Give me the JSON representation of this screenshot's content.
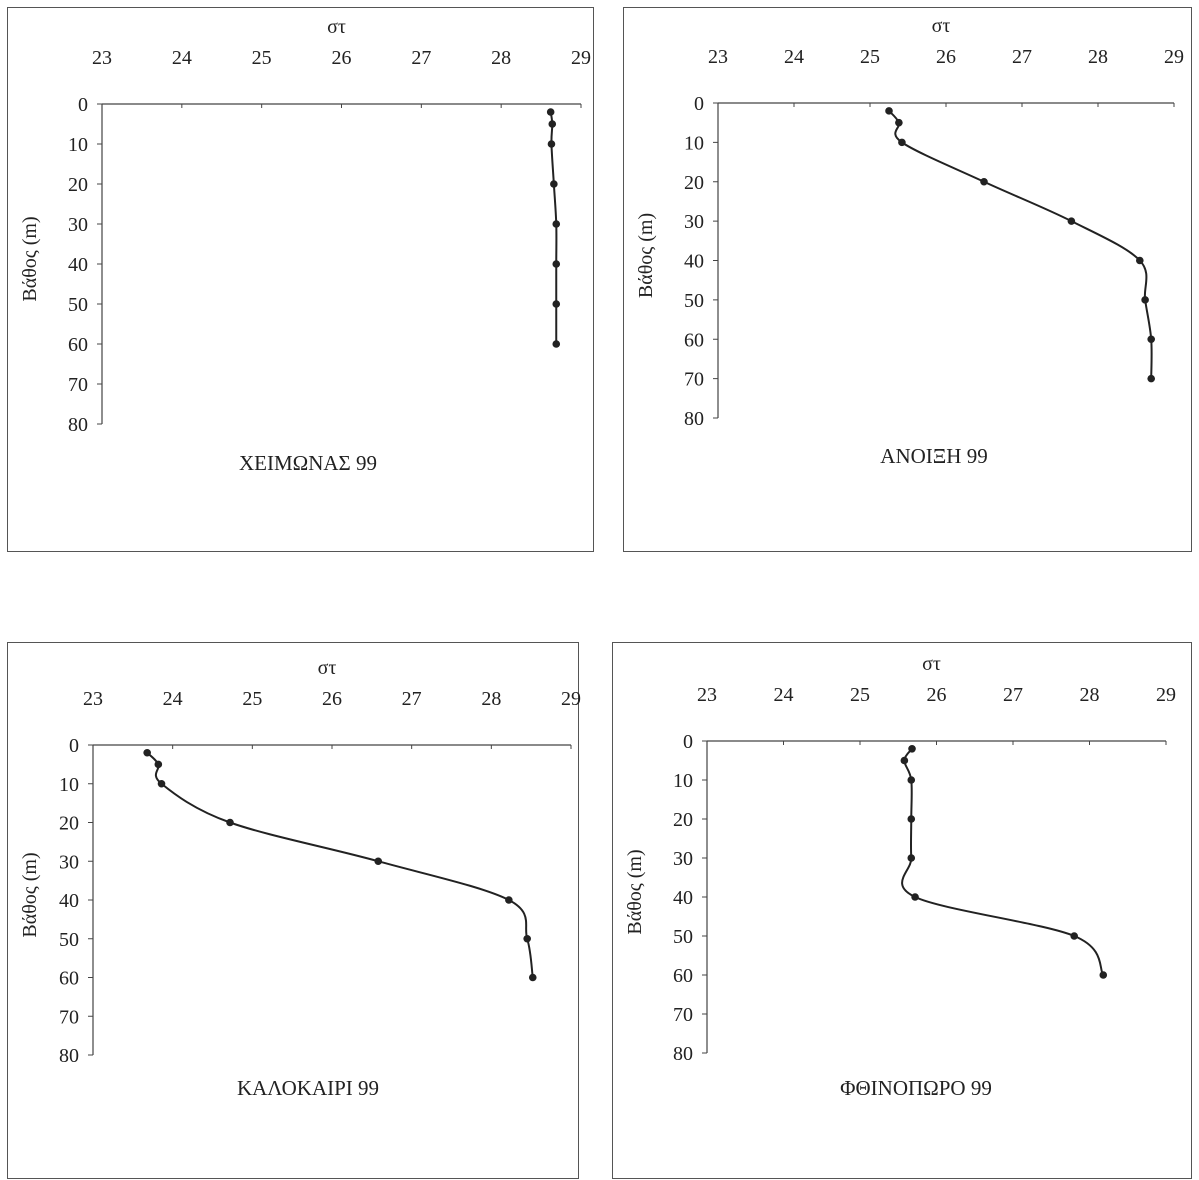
{
  "chart_data": [
    {
      "type": "line",
      "title": "ΧΕΙΜΩΝΑΣ 99",
      "xlabel": "στ",
      "ylabel": "Βάθος (m)",
      "xlim": [
        23,
        29
      ],
      "ylim": [
        0,
        80
      ],
      "x_ticks": [
        "23",
        "24",
        "25",
        "26",
        "27",
        "28",
        "29"
      ],
      "y_ticks": [
        "0",
        "10",
        "20",
        "30",
        "40",
        "50",
        "60",
        "70",
        "80"
      ],
      "y_inverted": true,
      "x_axis_position": "top",
      "series": [
        {
          "points": [
            [
              28.62,
              2
            ],
            [
              28.64,
              5
            ],
            [
              28.63,
              10
            ],
            [
              28.66,
              20
            ],
            [
              28.69,
              30
            ],
            [
              28.69,
              40
            ],
            [
              28.69,
              50
            ],
            [
              28.69,
              60
            ]
          ]
        }
      ]
    },
    {
      "type": "line",
      "title": "ΑΝΟΙΞΗ 99",
      "xlabel": "στ",
      "ylabel": "Βάθος (m)",
      "xlim": [
        23,
        29
      ],
      "ylim": [
        0,
        80
      ],
      "x_ticks": [
        "23",
        "24",
        "25",
        "26",
        "27",
        "28",
        "29"
      ],
      "y_ticks": [
        "0",
        "10",
        "20",
        "30",
        "40",
        "50",
        "60",
        "70",
        "80"
      ],
      "y_inverted": true,
      "x_axis_position": "top",
      "series": [
        {
          "points": [
            [
              25.25,
              2
            ],
            [
              25.38,
              5
            ],
            [
              25.42,
              10
            ],
            [
              26.5,
              20
            ],
            [
              27.65,
              30
            ],
            [
              28.55,
              40
            ],
            [
              28.62,
              50
            ],
            [
              28.7,
              60
            ],
            [
              28.7,
              70
            ]
          ]
        }
      ]
    },
    {
      "type": "line",
      "title": "ΚΑΛΟΚΑΙΡΙ 99",
      "xlabel": "στ",
      "ylabel": "Βάθος (m)",
      "xlim": [
        23,
        29
      ],
      "ylim": [
        0,
        80
      ],
      "x_ticks": [
        "23",
        "24",
        "25",
        "26",
        "27",
        "28",
        "29"
      ],
      "y_ticks": [
        "0",
        "10",
        "20",
        "30",
        "40",
        "50",
        "60",
        "70",
        "80"
      ],
      "y_inverted": true,
      "x_axis_position": "top",
      "series": [
        {
          "points": [
            [
              23.68,
              2
            ],
            [
              23.82,
              5
            ],
            [
              23.86,
              10
            ],
            [
              24.72,
              20
            ],
            [
              26.58,
              30
            ],
            [
              28.22,
              40
            ],
            [
              28.45,
              50
            ],
            [
              28.52,
              60
            ]
          ]
        }
      ]
    },
    {
      "type": "line",
      "title": "ΦΘΙΝΟΠΩΡΟ 99",
      "xlabel": "στ",
      "ylabel": "Βάθος (m)",
      "xlim": [
        23,
        29
      ],
      "ylim": [
        0,
        80
      ],
      "x_ticks": [
        "23",
        "24",
        "25",
        "26",
        "27",
        "28",
        "29"
      ],
      "y_ticks": [
        "0",
        "10",
        "20",
        "30",
        "40",
        "50",
        "60",
        "70",
        "80"
      ],
      "y_inverted": true,
      "x_axis_position": "top",
      "series": [
        {
          "points": [
            [
              25.68,
              2
            ],
            [
              25.58,
              5
            ],
            [
              25.67,
              10
            ],
            [
              25.67,
              20
            ],
            [
              25.67,
              30
            ],
            [
              25.72,
              40
            ],
            [
              27.8,
              50
            ],
            [
              28.18,
              60
            ]
          ]
        }
      ]
    }
  ]
}
